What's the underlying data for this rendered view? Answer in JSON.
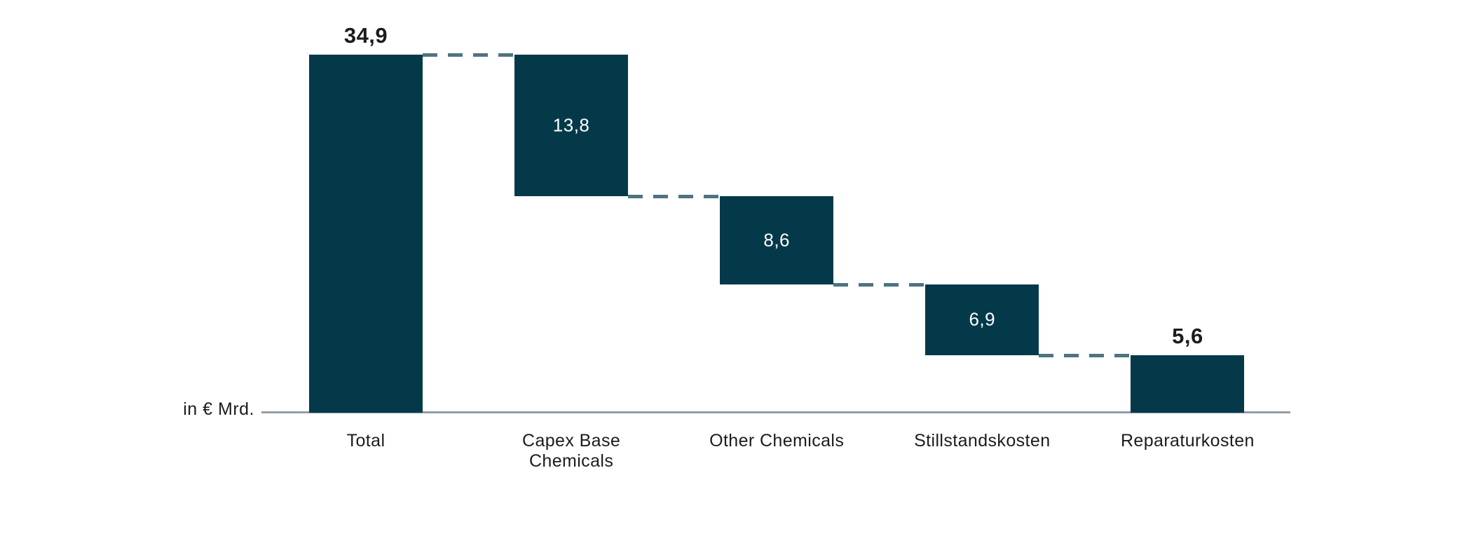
{
  "chart": {
    "unit_label": "in € Mrd.",
    "colors": {
      "bar": "#04394a",
      "connector": "#4d7480",
      "axis_line": "#959ca8",
      "label_dark": "#1c1c1c",
      "label_light": "#ffffff",
      "background": "#ffffff"
    }
  },
  "chart_data": {
    "type": "bar",
    "subtype": "waterfall",
    "title": "",
    "xlabel": "",
    "ylabel": "in € Mrd.",
    "categories": [
      "Total",
      "Capex Base Chemicals",
      "Other Chemicals",
      "Stillstandskosten",
      "Reparaturkosten"
    ],
    "values": [
      34.9,
      13.8,
      8.6,
      6.9,
      5.6
    ],
    "value_labels": [
      "34,9",
      "13,8",
      "8,6",
      "6,9",
      "5,6"
    ],
    "label_placement": [
      "above",
      "inside",
      "inside",
      "inside",
      "above"
    ],
    "bar_roles": [
      "total",
      "step-down",
      "step-down",
      "step-down",
      "step-down"
    ],
    "ylim": [
      0,
      34.9
    ],
    "grid": false,
    "legend": false,
    "connectors": "dashed",
    "notes": "Waterfall decomposition: 13.8 + 8.6 + 6.9 + 5.6 = 34.9"
  }
}
